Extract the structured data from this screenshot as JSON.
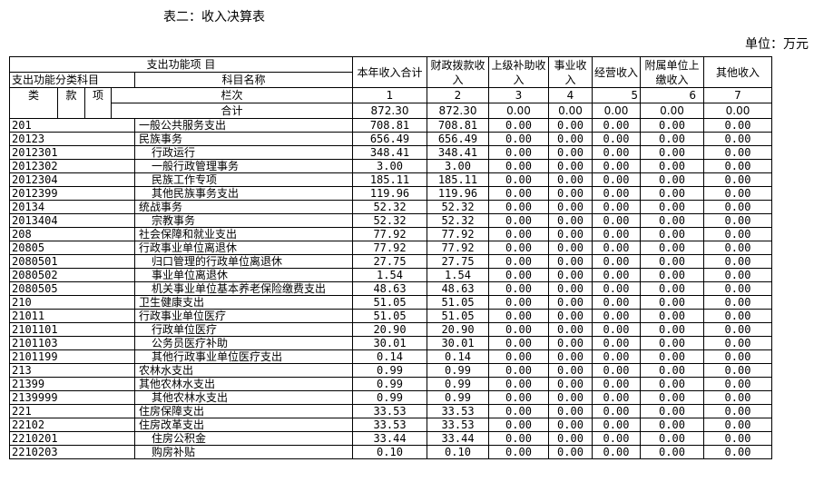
{
  "title": "表二：收入决算表",
  "unit": "单位：万元",
  "header": {
    "group": "支出功能项 目",
    "subgroup": "支出功能分类科目",
    "name": "科目名称",
    "lei": "类",
    "kuan": "款",
    "xiang": "项",
    "lanci": "栏次",
    "total_label": "合计",
    "cols": [
      "本年收入合计",
      "财政拨款收入",
      "上级补助收入",
      "事业收入",
      "经营收入",
      "附属单位上缴收入",
      "其他收入"
    ],
    "col_nums": [
      "1",
      "2",
      "3",
      "4",
      "5",
      "6",
      "7"
    ]
  },
  "total": [
    "872.30",
    "872.30",
    "0.00",
    "0.00",
    "0.00",
    "0.00",
    "0.00"
  ],
  "rows": [
    {
      "code": "201",
      "name": "一般公共服务支出",
      "indent": 0,
      "v": [
        "708.81",
        "708.81",
        "0.00",
        "0.00",
        "0.00",
        "0.00",
        "0.00"
      ]
    },
    {
      "code": "20123",
      "name": "民族事务",
      "indent": 0,
      "v": [
        "656.49",
        "656.49",
        "0.00",
        "0.00",
        "0.00",
        "0.00",
        "0.00"
      ]
    },
    {
      "code": "2012301",
      "name": "行政运行",
      "indent": 1,
      "v": [
        "348.41",
        "348.41",
        "0.00",
        "0.00",
        "0.00",
        "0.00",
        "0.00"
      ]
    },
    {
      "code": "2012302",
      "name": "一般行政管理事务",
      "indent": 1,
      "v": [
        "3.00",
        "3.00",
        "0.00",
        "0.00",
        "0.00",
        "0.00",
        "0.00"
      ]
    },
    {
      "code": "2012304",
      "name": "民族工作专项",
      "indent": 1,
      "v": [
        "185.11",
        "185.11",
        "0.00",
        "0.00",
        "0.00",
        "0.00",
        "0.00"
      ]
    },
    {
      "code": "2012399",
      "name": "其他民族事务支出",
      "indent": 1,
      "v": [
        "119.96",
        "119.96",
        "0.00",
        "0.00",
        "0.00",
        "0.00",
        "0.00"
      ]
    },
    {
      "code": "20134",
      "name": "统战事务",
      "indent": 0,
      "v": [
        "52.32",
        "52.32",
        "0.00",
        "0.00",
        "0.00",
        "0.00",
        "0.00"
      ]
    },
    {
      "code": "2013404",
      "name": "宗教事务",
      "indent": 1,
      "v": [
        "52.32",
        "52.32",
        "0.00",
        "0.00",
        "0.00",
        "0.00",
        "0.00"
      ]
    },
    {
      "code": "208",
      "name": "社会保障和就业支出",
      "indent": 0,
      "v": [
        "77.92",
        "77.92",
        "0.00",
        "0.00",
        "0.00",
        "0.00",
        "0.00"
      ]
    },
    {
      "code": "20805",
      "name": "行政事业单位离退休",
      "indent": 0,
      "v": [
        "77.92",
        "77.92",
        "0.00",
        "0.00",
        "0.00",
        "0.00",
        "0.00"
      ]
    },
    {
      "code": "2080501",
      "name": "归口管理的行政单位离退休",
      "indent": 1,
      "v": [
        "27.75",
        "27.75",
        "0.00",
        "0.00",
        "0.00",
        "0.00",
        "0.00"
      ]
    },
    {
      "code": "2080502",
      "name": "事业单位离退休",
      "indent": 1,
      "v": [
        "1.54",
        "1.54",
        "0.00",
        "0.00",
        "0.00",
        "0.00",
        "0.00"
      ]
    },
    {
      "code": "2080505",
      "name": "机关事业单位基本养老保险缴费支出",
      "indent": 1,
      "v": [
        "48.63",
        "48.63",
        "0.00",
        "0.00",
        "0.00",
        "0.00",
        "0.00"
      ]
    },
    {
      "code": "210",
      "name": "卫生健康支出",
      "indent": 0,
      "v": [
        "51.05",
        "51.05",
        "0.00",
        "0.00",
        "0.00",
        "0.00",
        "0.00"
      ]
    },
    {
      "code": "21011",
      "name": "行政事业单位医疗",
      "indent": 0,
      "v": [
        "51.05",
        "51.05",
        "0.00",
        "0.00",
        "0.00",
        "0.00",
        "0.00"
      ]
    },
    {
      "code": "2101101",
      "name": "行政单位医疗",
      "indent": 1,
      "v": [
        "20.90",
        "20.90",
        "0.00",
        "0.00",
        "0.00",
        "0.00",
        "0.00"
      ]
    },
    {
      "code": "2101103",
      "name": "公务员医疗补助",
      "indent": 1,
      "v": [
        "30.01",
        "30.01",
        "0.00",
        "0.00",
        "0.00",
        "0.00",
        "0.00"
      ]
    },
    {
      "code": "2101199",
      "name": "其他行政事业单位医疗支出",
      "indent": 1,
      "v": [
        "0.14",
        "0.14",
        "0.00",
        "0.00",
        "0.00",
        "0.00",
        "0.00"
      ]
    },
    {
      "code": "213",
      "name": "农林水支出",
      "indent": 0,
      "v": [
        "0.99",
        "0.99",
        "0.00",
        "0.00",
        "0.00",
        "0.00",
        "0.00"
      ]
    },
    {
      "code": "21399",
      "name": "其他农林水支出",
      "indent": 0,
      "v": [
        "0.99",
        "0.99",
        "0.00",
        "0.00",
        "0.00",
        "0.00",
        "0.00"
      ]
    },
    {
      "code": "2139999",
      "name": "其他农林水支出",
      "indent": 1,
      "v": [
        "0.99",
        "0.99",
        "0.00",
        "0.00",
        "0.00",
        "0.00",
        "0.00"
      ]
    },
    {
      "code": "221",
      "name": "住房保障支出",
      "indent": 0,
      "v": [
        "33.53",
        "33.53",
        "0.00",
        "0.00",
        "0.00",
        "0.00",
        "0.00"
      ]
    },
    {
      "code": "22102",
      "name": "住房改革支出",
      "indent": 0,
      "v": [
        "33.53",
        "33.53",
        "0.00",
        "0.00",
        "0.00",
        "0.00",
        "0.00"
      ]
    },
    {
      "code": "2210201",
      "name": "住房公积金",
      "indent": 1,
      "v": [
        "33.44",
        "33.44",
        "0.00",
        "0.00",
        "0.00",
        "0.00",
        "0.00"
      ]
    },
    {
      "code": "2210203",
      "name": "购房补贴",
      "indent": 1,
      "v": [
        "0.10",
        "0.10",
        "0.00",
        "0.00",
        "0.00",
        "0.00",
        "0.00"
      ]
    }
  ]
}
